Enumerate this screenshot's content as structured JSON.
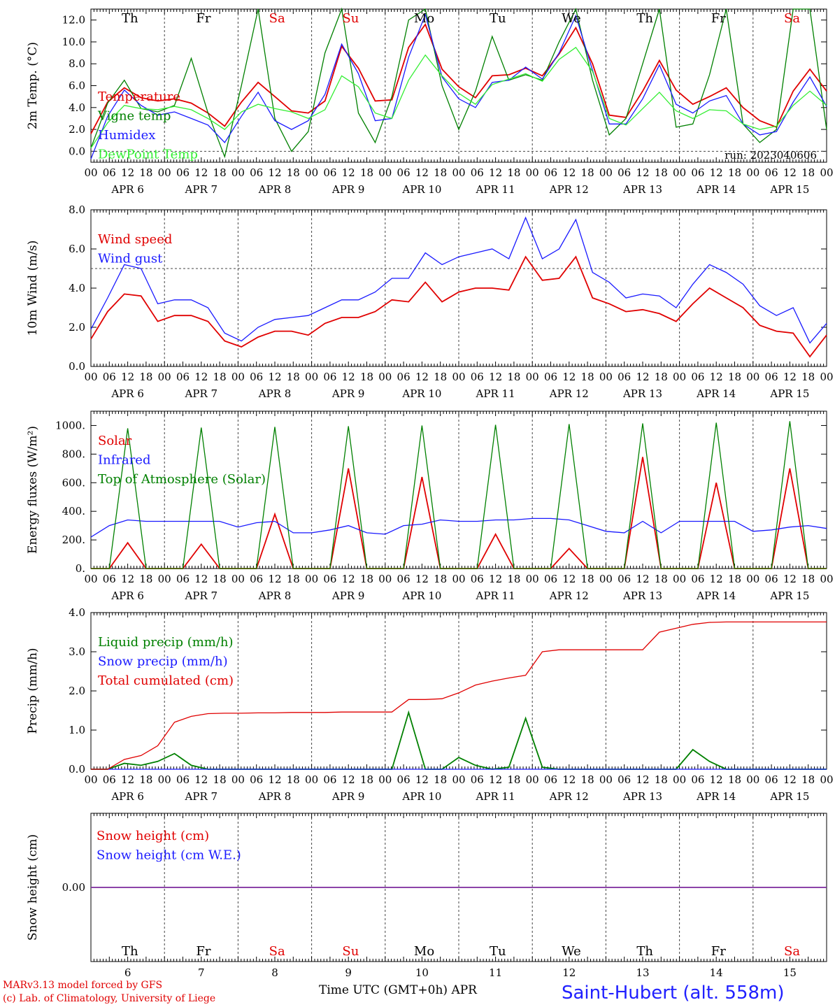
{
  "footer": {
    "model": "MARv3.13 model forced by GFS",
    "credit": "(c) Lab. of Climatology, University of Liege",
    "xlabel": "Time UTC (GMT+0h) APR",
    "station": "Saint-Hubert (alt. 558m)"
  },
  "days": {
    "names": [
      "Th",
      "Fr",
      "Sa",
      "Su",
      "Mo",
      "Tu",
      "We",
      "Th",
      "Fr",
      "Sa"
    ],
    "colors": [
      "#000",
      "#000",
      "#e00000",
      "#e00000",
      "#000",
      "#000",
      "#000",
      "#000",
      "#000",
      "#e00000"
    ],
    "dates": [
      "APR  6",
      "APR  7",
      "APR  8",
      "APR  9",
      "APR 10",
      "APR 11",
      "APR 12",
      "APR 13",
      "APR 14",
      "APR 15"
    ],
    "numbers": [
      "6",
      "7",
      "8",
      "9",
      "10",
      "11",
      "12",
      "13",
      "14",
      "15"
    ],
    "hours": [
      "00",
      "06",
      "12",
      "18"
    ],
    "end_hour": "00"
  },
  "chart_data": [
    {
      "type": "line",
      "ylabel": "2m Temp. (°C)",
      "ylim": [
        -1.0,
        13.0
      ],
      "yticks": [
        "0.0",
        "2.0",
        "4.0",
        "6.0",
        "8.0",
        "10.0",
        "12.0"
      ],
      "reference_line": 0,
      "annotation": "run: 2023040606",
      "x_unit": "hours since APR 6 00 UTC (every 6h)",
      "series": [
        {
          "name": "Temperature",
          "color": "#e00000",
          "values": [
            1.6,
            4.5,
            5.8,
            4.9,
            4.6,
            4.8,
            4.4,
            3.5,
            2.3,
            4.5,
            6.3,
            5.0,
            3.7,
            3.5,
            4.6,
            9.6,
            7.6,
            4.6,
            4.7,
            9.5,
            11.6,
            7.5,
            5.9,
            4.9,
            6.9,
            7.0,
            7.6,
            6.9,
            8.9,
            11.3,
            8.0,
            3.3,
            3.1,
            5.5,
            8.3,
            5.6,
            4.3,
            5.0,
            5.8,
            4.0,
            2.8,
            2.2,
            5.5,
            7.5,
            5.5
          ]
        },
        {
          "name": "Vigne temp",
          "color": "#008000",
          "values": [
            0.3,
            4.4,
            6.5,
            3.9,
            3.6,
            4.2,
            8.5,
            3.5,
            -0.5,
            6.0,
            13,
            3.0,
            0.0,
            1.8,
            9.0,
            13,
            3.5,
            0.8,
            5.0,
            12,
            13,
            6.0,
            2.0,
            5.5,
            10.5,
            6.5,
            7.0,
            6.5,
            10.0,
            13,
            6.5,
            1.5,
            3.0,
            8.0,
            13,
            2.2,
            2.5,
            7.0,
            13,
            2.5,
            0.8,
            2.0,
            13,
            13,
            2.0
          ]
        },
        {
          "name": "Humidex",
          "color": "#1a1aff",
          "values": [
            -0.7,
            3.2,
            5.6,
            4.2,
            3.3,
            3.6,
            3.0,
            2.4,
            0.8,
            3.2,
            5.4,
            2.8,
            2.0,
            2.8,
            5.2,
            9.8,
            7.1,
            2.8,
            3.0,
            8.6,
            12.5,
            6.8,
            4.8,
            4.0,
            6.3,
            6.5,
            7.7,
            6.6,
            9.0,
            12.4,
            7.4,
            2.5,
            2.5,
            4.8,
            7.9,
            4.3,
            3.5,
            4.6,
            5.1,
            2.5,
            1.5,
            1.8,
            4.5,
            6.8,
            4.1
          ]
        },
        {
          "name": "DewPoint Temp",
          "color": "#33ee33",
          "values": [
            0.3,
            2.6,
            4.2,
            3.9,
            3.8,
            4.1,
            3.8,
            3.0,
            2.0,
            3.6,
            4.3,
            3.9,
            3.6,
            3.0,
            3.8,
            6.9,
            5.9,
            3.5,
            3.0,
            6.5,
            8.8,
            6.9,
            5.3,
            4.3,
            6.1,
            6.6,
            7.1,
            6.4,
            8.4,
            9.5,
            7.3,
            3.0,
            2.4,
            3.9,
            5.4,
            3.7,
            3.0,
            3.8,
            3.7,
            2.5,
            2.0,
            2.3,
            4.2,
            5.5,
            4.2
          ]
        }
      ]
    },
    {
      "type": "line",
      "ylabel": "10m Wind (m/s)",
      "ylim": [
        0.0,
        8.0
      ],
      "yticks": [
        "0.0",
        "2.0",
        "4.0",
        "6.0",
        "8.0"
      ],
      "reference_line": 5,
      "x_unit": "hours since APR 6 00 UTC (every 6h)",
      "series": [
        {
          "name": "Wind speed",
          "color": "#e00000",
          "values": [
            1.4,
            2.8,
            3.7,
            3.6,
            2.3,
            2.6,
            2.6,
            2.3,
            1.3,
            1.0,
            1.5,
            1.8,
            1.8,
            1.6,
            2.2,
            2.5,
            2.5,
            2.8,
            3.4,
            3.3,
            4.3,
            3.3,
            3.8,
            4.0,
            4.0,
            3.9,
            5.6,
            4.4,
            4.5,
            5.6,
            3.5,
            3.2,
            2.8,
            2.9,
            2.7,
            2.3,
            3.2,
            4.0,
            3.5,
            3.0,
            2.1,
            1.8,
            1.7,
            0.5,
            1.6
          ]
        },
        {
          "name": "Wind gust",
          "color": "#1a1aff",
          "values": [
            1.9,
            3.5,
            5.2,
            5.0,
            3.2,
            3.4,
            3.4,
            3.0,
            1.7,
            1.3,
            2.0,
            2.4,
            2.5,
            2.6,
            3.0,
            3.4,
            3.4,
            3.8,
            4.5,
            4.5,
            5.8,
            5.2,
            5.6,
            5.8,
            6.0,
            5.5,
            7.6,
            5.5,
            6.0,
            7.5,
            4.8,
            4.3,
            3.5,
            3.7,
            3.6,
            3.0,
            4.2,
            5.2,
            4.8,
            4.2,
            3.1,
            2.6,
            3.0,
            1.2,
            2.2
          ]
        }
      ]
    },
    {
      "type": "line",
      "ylabel": "Energy fluxes (W/m²)",
      "ylim": [
        0,
        1100
      ],
      "yticks": [
        "0.",
        "200.",
        "400.",
        "600.",
        "800.",
        "1000."
      ],
      "x_unit": "hours since APR 6 00 UTC (every 6h)",
      "series": [
        {
          "name": "Solar",
          "color": "#e00000",
          "values": [
            0,
            0,
            180,
            0,
            0,
            0,
            170,
            0,
            0,
            0,
            380,
            0,
            0,
            0,
            700,
            0,
            0,
            0,
            640,
            0,
            0,
            0,
            240,
            0,
            0,
            0,
            140,
            0,
            0,
            0,
            780,
            0,
            0,
            0,
            600,
            0,
            0,
            0,
            700,
            0,
            0
          ]
        },
        {
          "name": "Infrared",
          "color": "#1a1aff",
          "values": [
            220,
            300,
            340,
            330,
            330,
            330,
            330,
            330,
            290,
            320,
            330,
            250,
            250,
            270,
            300,
            250,
            240,
            300,
            310,
            340,
            330,
            330,
            340,
            340,
            350,
            350,
            340,
            300,
            260,
            250,
            330,
            250,
            330,
            330,
            330,
            330,
            260,
            270,
            290,
            300,
            280
          ]
        },
        {
          "name": "Top of Atmosphere (Solar)",
          "color": "#008000",
          "values": [
            0,
            0,
            980,
            0,
            0,
            0,
            985,
            0,
            0,
            0,
            990,
            0,
            0,
            0,
            995,
            0,
            0,
            0,
            1000,
            0,
            0,
            0,
            1005,
            0,
            0,
            0,
            1010,
            0,
            0,
            0,
            1015,
            0,
            0,
            0,
            1020,
            0,
            0,
            0,
            1030,
            0,
            0
          ]
        }
      ]
    },
    {
      "type": "line",
      "ylabel": "Precip (mm/h)",
      "ylim": [
        0.0,
        4.0
      ],
      "yticks": [
        "0.0",
        "1.0",
        "2.0",
        "3.0",
        "4.0"
      ],
      "x_unit": "hours since APR 6 00 UTC (every 6h)",
      "series": [
        {
          "name": "Liquid precip (mm/h)",
          "color": "#008000",
          "values": [
            0,
            0,
            0.15,
            0.1,
            0.2,
            0.4,
            0.1,
            0,
            0,
            0,
            0,
            0,
            0,
            0,
            0,
            0,
            0,
            0,
            0,
            1.45,
            0,
            0,
            0.3,
            0.1,
            0,
            0.05,
            1.3,
            0.05,
            0,
            0,
            0,
            0,
            0,
            0,
            0,
            0,
            0.5,
            0.2,
            0,
            0,
            0,
            0,
            0,
            0,
            0
          ]
        },
        {
          "name": "Snow precip (mm/h)",
          "color": "#1a1aff",
          "values": [
            0,
            0,
            0,
            0,
            0,
            0,
            0,
            0,
            0,
            0,
            0,
            0,
            0,
            0,
            0,
            0,
            0,
            0,
            0,
            0,
            0,
            0,
            0,
            0,
            0,
            0,
            0,
            0,
            0,
            0,
            0,
            0,
            0,
            0,
            0,
            0,
            0,
            0,
            0,
            0,
            0,
            0,
            0,
            0,
            0
          ]
        },
        {
          "name": "Total cumulated (cm)",
          "color": "#e00000",
          "values": [
            0,
            0,
            0.25,
            0.35,
            0.6,
            1.2,
            1.35,
            1.42,
            1.43,
            1.43,
            1.44,
            1.44,
            1.45,
            1.45,
            1.45,
            1.46,
            1.46,
            1.46,
            1.46,
            1.78,
            1.78,
            1.8,
            1.95,
            2.15,
            2.25,
            2.33,
            2.4,
            3.0,
            3.05,
            3.05,
            3.05,
            3.05,
            3.05,
            3.05,
            3.5,
            3.6,
            3.7,
            3.75,
            3.76,
            3.76,
            3.76,
            3.76,
            3.76,
            3.76,
            3.76
          ]
        }
      ]
    },
    {
      "type": "line",
      "ylabel": "Snow height (cm)",
      "ylim": [
        -1.0,
        1.0
      ],
      "yticks": [
        "0.00"
      ],
      "x_unit": "hours since APR 6 00 UTC (every 6h)",
      "series": [
        {
          "name": "Snow height (cm)",
          "color": "#e00000",
          "values": [
            0,
            0
          ]
        },
        {
          "name": "Snow height (cm W.E.)",
          "color": "#1a1aff",
          "values": [
            0,
            0
          ]
        }
      ],
      "line_color": "#8030a0"
    }
  ]
}
